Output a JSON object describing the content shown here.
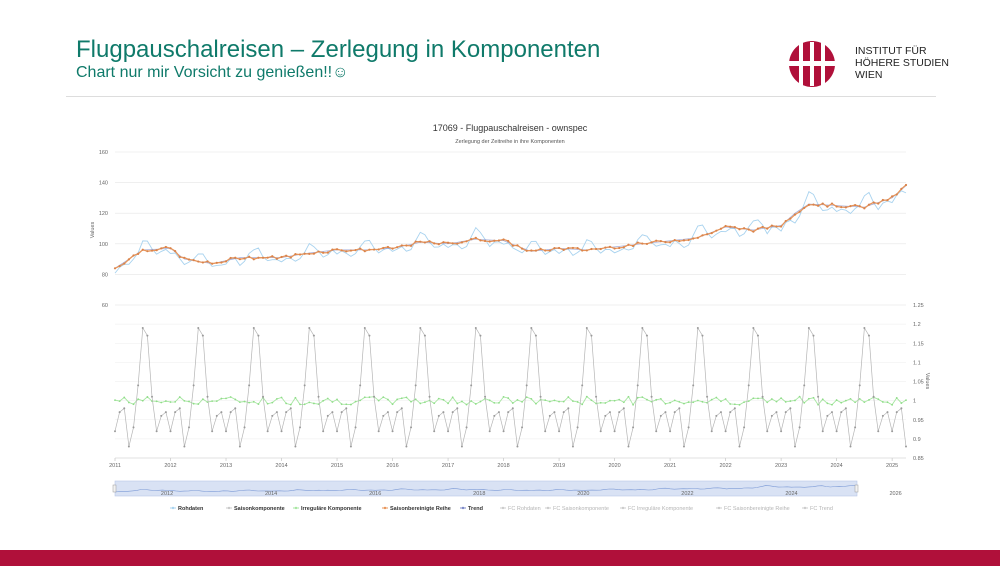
{
  "slide": {
    "title": "Flugpauschalreisen – Zerlegung in Komponenten",
    "subtitle": "Chart nur mir Vorsicht zu genießen!!☺",
    "logo_lines": [
      "INSTITUT FÜR",
      "HÖHERE STUDIEN",
      "WIEN"
    ],
    "logo_mark": "IHS",
    "colors": {
      "title": "#0f7a6a",
      "bottom_bar": "#b0103a",
      "logo": "#b0103a"
    }
  },
  "chart_data": {
    "type": "line",
    "title": "17069 - Flugpauschalreisen - ownspec",
    "subtitle": "Zerlegung der Zeitreihe in ihre Komponenten",
    "upper_panel": {
      "ylabel": "Values",
      "ylim": [
        60,
        160
      ],
      "yticks": [
        "60",
        "80",
        "100",
        "120",
        "140",
        "160"
      ]
    },
    "lower_panel": {
      "ylabel": "Values",
      "ylim": [
        0.85,
        1.25
      ],
      "yticks": [
        "0.85",
        "0.9",
        "0.95",
        "1",
        "1.05",
        "1.1",
        "1.15",
        "1.2",
        "1.25"
      ]
    },
    "x_range": [
      2011,
      2025.25
    ],
    "xticks": [
      "2011",
      "2012",
      "2013",
      "2014",
      "2015",
      "2016",
      "2017",
      "2018",
      "2019",
      "2020",
      "2021",
      "2022",
      "2023",
      "2024",
      "2025"
    ],
    "navigator_ticks": [
      "2012",
      "2014",
      "2016",
      "2018",
      "2020",
      "2022",
      "2024",
      "2026"
    ],
    "grid": true,
    "legend_position": "bottom",
    "series": [
      {
        "name": "Rohdaten",
        "color": "#a9d3ef"
      },
      {
        "name": "Saisonkomponente",
        "color": "#c8c8c8"
      },
      {
        "name": "Irreguläre Komponente",
        "color": "#a6e6a0"
      },
      {
        "name": "Saisonbereinigte Reihe",
        "color": "#e8955a"
      },
      {
        "name": "Trend",
        "color": "#7c89c7"
      },
      {
        "name": "FC Rohdaten",
        "color": "#cccccc"
      },
      {
        "name": "FC Saisonkomponente",
        "color": "#cccccc"
      },
      {
        "name": "FC Irreguläre Komponente",
        "color": "#cccccc"
      },
      {
        "name": "FC Saisonbereinigte Reihe",
        "color": "#cccccc"
      },
      {
        "name": "FC Trend",
        "color": "#cccccc"
      }
    ],
    "seasonal_pattern": [
      0.92,
      0.97,
      0.98,
      0.88,
      0.93,
      1.04,
      1.19,
      1.17,
      1.01,
      0.92,
      0.96,
      0.97
    ],
    "sa_anchors": [
      [
        2011.0,
        84
      ],
      [
        2011.5,
        96
      ],
      [
        2012.0,
        97
      ],
      [
        2012.25,
        90
      ],
      [
        2012.75,
        87
      ],
      [
        2013.25,
        91
      ],
      [
        2014.0,
        91
      ],
      [
        2014.5,
        94
      ],
      [
        2015.0,
        96
      ],
      [
        2015.5,
        96
      ],
      [
        2016.0,
        97
      ],
      [
        2016.5,
        101
      ],
      [
        2017.0,
        100
      ],
      [
        2017.5,
        103
      ],
      [
        2018.0,
        102
      ],
      [
        2018.5,
        95
      ],
      [
        2019.0,
        97
      ],
      [
        2019.5,
        96
      ],
      [
        2020.0,
        98
      ],
      [
        2020.5,
        100
      ],
      [
        2021.0,
        102
      ],
      [
        2021.5,
        104
      ],
      [
        2022.0,
        111
      ],
      [
        2022.5,
        109
      ],
      [
        2023.0,
        112
      ],
      [
        2023.25,
        120
      ],
      [
        2023.5,
        126
      ],
      [
        2024.0,
        125
      ],
      [
        2024.5,
        124
      ],
      [
        2025.0,
        130
      ],
      [
        2025.25,
        138
      ]
    ]
  }
}
